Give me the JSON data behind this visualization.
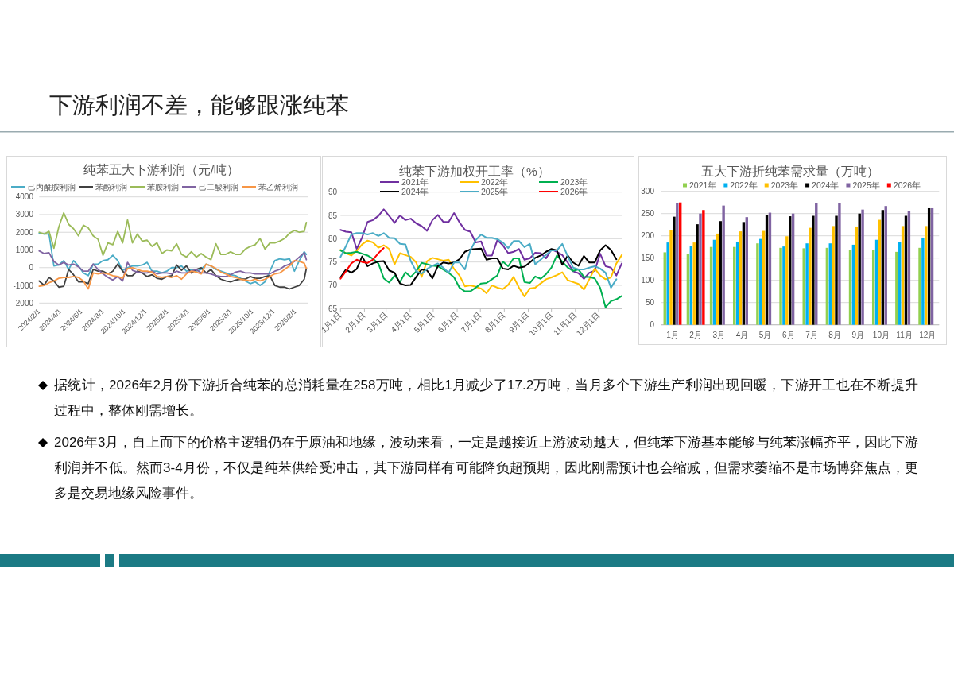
{
  "chart_data": [
    {
      "type": "other",
      "title": "下游利润不差，能够跟涨纯苯"
    },
    {
      "type": "line",
      "title": "纯苯五大下游利润（元/吨）",
      "legend": "top",
      "grid": "y",
      "ylim": [
        -2000,
        4000
      ],
      "yticks": [
        -2000,
        -1000,
        0,
        1000,
        2000,
        3000,
        4000
      ],
      "xlim": [
        "2024-02-01",
        "2026-03-10"
      ],
      "xticks": [
        {
          "value": "2024-02-01",
          "label": "2024/2/1"
        },
        {
          "value": "2024-04-01",
          "label": "2024/4/1"
        },
        {
          "value": "2024-06-01",
          "label": "2024/6/1"
        },
        {
          "value": "2024-08-01",
          "label": "2024/8/1"
        },
        {
          "value": "2024-10-01",
          "label": "2024/10/1"
        },
        {
          "value": "2024-12-01",
          "label": "2024/12/1"
        },
        {
          "value": "2025-02-01",
          "label": "2025/2/1"
        },
        {
          "value": "2025-04-01",
          "label": "2025/4/1"
        },
        {
          "value": "2025-06-01",
          "label": "2025/6/1"
        },
        {
          "value": "2025-08-01",
          "label": "2025/8/1"
        },
        {
          "value": "2025-10-01",
          "label": "2025/10/1"
        },
        {
          "value": "2025-12-01",
          "label": "2025/12/1"
        },
        {
          "value": "2026-02-01",
          "label": "2026/2/1"
        }
      ],
      "x": [
        "2024-02-01",
        "2024-02-15",
        "2024-02-29",
        "2024-03-14",
        "2024-03-28",
        "2024-04-11",
        "2024-04-25",
        "2024-05-09",
        "2024-05-23",
        "2024-06-06",
        "2024-06-20",
        "2024-07-04",
        "2024-07-18",
        "2024-08-01",
        "2024-08-15",
        "2024-08-29",
        "2024-09-12",
        "2024-09-26",
        "2024-10-10",
        "2024-10-24",
        "2024-11-07",
        "2024-11-21",
        "2024-12-05",
        "2024-12-19",
        "2025-01-02",
        "2025-01-16",
        "2025-01-30",
        "2025-02-13",
        "2025-02-27",
        "2025-03-13",
        "2025-03-27",
        "2025-04-10",
        "2025-04-24",
        "2025-05-08",
        "2025-05-22",
        "2025-06-05",
        "2025-06-19",
        "2025-07-03",
        "2025-07-17",
        "2025-07-31",
        "2025-08-14",
        "2025-08-28",
        "2025-09-11",
        "2025-09-25",
        "2025-10-09",
        "2025-10-23",
        "2025-11-06",
        "2025-11-20",
        "2025-12-04",
        "2025-12-18",
        "2026-01-01",
        "2026-01-15",
        "2026-01-29",
        "2026-02-12",
        "2026-02-26",
        "2026-03-04"
      ],
      "series": [
        {
          "name": "己内酰胺利润",
          "color": "#4bacc6",
          "values": [
            1950,
            1900,
            1900,
            100,
            150,
            400,
            -100,
            400,
            100,
            -300,
            -450,
            200,
            200,
            400,
            450,
            700,
            400,
            -150,
            0,
            100,
            100,
            150,
            300,
            -200,
            -200,
            -300,
            -200,
            0,
            0,
            100,
            -200,
            -100,
            -200,
            -100,
            200,
            100,
            -100,
            -200,
            -300,
            -400,
            -450,
            -600,
            -750,
            -900,
            -800,
            -1000,
            -800,
            -200,
            400,
            500,
            450,
            500,
            -200,
            400,
            900,
            750
          ]
        },
        {
          "name": "苯酚利润",
          "color": "#404040",
          "values": [
            -750,
            -1000,
            -550,
            -750,
            -1100,
            -1050,
            -100,
            -400,
            -800,
            -800,
            -900,
            -100,
            -200,
            -200,
            -350,
            -200,
            200,
            -200,
            -450,
            -450,
            -200,
            -300,
            -500,
            -400,
            -600,
            -650,
            -500,
            -450,
            150,
            -150,
            100,
            -300,
            -100,
            0,
            -300,
            -100,
            -450,
            -650,
            -750,
            -800,
            -700,
            -650,
            -650,
            -500,
            -600,
            -600,
            -500,
            -450,
            -1000,
            -1100,
            -1100,
            -1200,
            -1100,
            -1000,
            -650,
            -50
          ]
        },
        {
          "name": "苯胺利润",
          "color": "#9bbb59",
          "values": [
            2000,
            1900,
            2050,
            1100,
            2300,
            3100,
            2450,
            2200,
            1800,
            2400,
            2250,
            1800,
            1600,
            700,
            1400,
            1300,
            2050,
            1400,
            2700,
            1400,
            1900,
            1500,
            1550,
            1200,
            1400,
            800,
            1000,
            950,
            1350,
            750,
            600,
            900,
            600,
            800,
            600,
            450,
            1350,
            750,
            750,
            900,
            750,
            750,
            1050,
            1200,
            1300,
            1650,
            1050,
            1400,
            1400,
            1500,
            1650,
            1950,
            2100,
            2000,
            2050,
            2550
          ]
        },
        {
          "name": "己二酸利润",
          "color": "#8064a2",
          "values": [
            950,
            800,
            850,
            350,
            150,
            300,
            150,
            200,
            50,
            -200,
            -200,
            200,
            -100,
            -350,
            -550,
            -700,
            -500,
            -750,
            300,
            -150,
            -250,
            -300,
            -300,
            -200,
            -350,
            -300,
            -300,
            -350,
            -200,
            -300,
            -300,
            -200,
            -100,
            -300,
            -300,
            -350,
            -450,
            -500,
            -500,
            -400,
            -250,
            -200,
            -300,
            -300,
            -350,
            -350,
            -350,
            -350,
            -200,
            -100,
            100,
            200,
            350,
            600,
            850,
            450
          ]
        },
        {
          "name": "苯乙烯利润",
          "color": "#f79646",
          "values": [
            -1050,
            -1000,
            -850,
            -750,
            -600,
            -550,
            -550,
            -500,
            -550,
            -750,
            -1200,
            -300,
            -350,
            -300,
            -350,
            -450,
            -500,
            -600,
            -50,
            0,
            -100,
            -200,
            -200,
            -250,
            -500,
            -550,
            -500,
            -550,
            -450,
            -650,
            -350,
            -200,
            -250,
            -350,
            200,
            100,
            -50,
            -250,
            -350,
            -500,
            -550,
            -650,
            -700,
            -750,
            -650,
            -750,
            -650,
            -500,
            -350,
            -300,
            -100,
            100,
            400,
            350,
            250,
            -50
          ]
        }
      ]
    },
    {
      "type": "line",
      "title": "纯苯下游加权开工率（%）",
      "legend": "top",
      "grid": "y",
      "ylim": [
        65,
        90
      ],
      "yticks": [
        65,
        70,
        75,
        80,
        85,
        90
      ],
      "xlim": [
        "--01-01",
        "--12-31"
      ],
      "xticks": [
        {
          "value": "--01-01",
          "label": "1月1日"
        },
        {
          "value": "--02-01",
          "label": "2月1日"
        },
        {
          "value": "--03-01",
          "label": "3月1日"
        },
        {
          "value": "--04-01",
          "label": "4月1日"
        },
        {
          "value": "--05-01",
          "label": "5月1日"
        },
        {
          "value": "--06-01",
          "label": "6月1日"
        },
        {
          "value": "--07-01",
          "label": "7月1日"
        },
        {
          "value": "--08-01",
          "label": "8月1日"
        },
        {
          "value": "--09-01",
          "label": "9月1日"
        },
        {
          "value": "--10-01",
          "label": "10月1日"
        },
        {
          "value": "--11-01",
          "label": "11月1日"
        },
        {
          "value": "--12-01",
          "label": "12月1日"
        }
      ],
      "x": [
        "--01-01",
        "--01-08",
        "--01-15",
        "--01-22",
        "--01-29",
        "--02-05",
        "--02-12",
        "--02-19",
        "--02-26",
        "--03-05",
        "--03-12",
        "--03-19",
        "--03-26",
        "--04-02",
        "--04-09",
        "--04-16",
        "--04-23",
        "--04-30",
        "--05-07",
        "--05-14",
        "--05-21",
        "--05-28",
        "--06-04",
        "--06-11",
        "--06-18",
        "--06-25",
        "--07-02",
        "--07-09",
        "--07-16",
        "--07-23",
        "--07-30",
        "--08-06",
        "--08-13",
        "--08-20",
        "--08-27",
        "--09-03",
        "--09-10",
        "--09-17",
        "--09-24",
        "--10-01",
        "--10-08",
        "--10-15",
        "--10-22",
        "--10-29",
        "--11-05",
        "--11-12",
        "--11-19",
        "--11-26",
        "--12-03",
        "--12-10",
        "--12-17",
        "--12-24",
        "--12-31"
      ],
      "series": [
        {
          "name": "2021年",
          "color": "#7030a0",
          "values": [
            81.9,
            81.5,
            81.4,
            77.8,
            80.3,
            83.6,
            84.0,
            84.9,
            86.3,
            84.9,
            83.4,
            85.0,
            84.0,
            84.3,
            83.3,
            82.7,
            81.7,
            84.0,
            85.1,
            83.6,
            83.6,
            85.5,
            83.5,
            81.9,
            81.5,
            79.2,
            79.4,
            76.4,
            76.4,
            79.7,
            78.6,
            76.9,
            77.2,
            77.8,
            75.5,
            75.8,
            77.0,
            76.9,
            75.8,
            77.7,
            77.2,
            76.5,
            74.9,
            73.0,
            72.6,
            71.4,
            72.7,
            73.1,
            76.8,
            74.1,
            73.8,
            72.1,
            74.7
          ]
        },
        {
          "name": "2022年",
          "color": "#ffc000",
          "values": [
            77.6,
            76.9,
            76.4,
            77.4,
            78.8,
            79.6,
            79.2,
            78.1,
            78.6,
            77.8,
            74.5,
            76.9,
            76.5,
            76.1,
            74.9,
            71.8,
            75.2,
            75.9,
            75.6,
            75.3,
            75.5,
            73.5,
            72.1,
            69.8,
            70.0,
            69.7,
            69.3,
            68.3,
            70.0,
            69.5,
            69.2,
            70.1,
            71.8,
            69.5,
            67.6,
            69.3,
            69.5,
            70.4,
            71.3,
            71.7,
            72.2,
            72.8,
            71.1,
            70.7,
            70.3,
            69.1,
            71.3,
            73.6,
            72.1,
            71.3,
            71.7,
            74.7,
            76.5
          ]
        },
        {
          "name": "2023年",
          "color": "#00b050",
          "values": [
            77.5,
            76.9,
            77.0,
            77.2,
            76.8,
            76.4,
            75.7,
            74.7,
            71.5,
            70.6,
            72.1,
            70.7,
            72.8,
            71.8,
            73.0,
            74.8,
            74.5,
            74.2,
            74.1,
            73.4,
            72.7,
            71.7,
            69.5,
            68.7,
            68.7,
            69.5,
            70.4,
            70.5,
            71.3,
            72.1,
            75.1,
            74.1,
            75.8,
            75.8,
            70.7,
            70.5,
            71.9,
            71.4,
            72.4,
            73.8,
            76.4,
            75.1,
            73.8,
            73.1,
            73.4,
            71.8,
            71.8,
            71.5,
            69.5,
            65.3,
            66.6,
            67.0,
            67.7
          ]
        },
        {
          "name": "2024年",
          "color": "#000000",
          "values": [
            71.7,
            73.4,
            72.7,
            73.5,
            76.2,
            74.1,
            74.7,
            75.1,
            75.2,
            73.2,
            72.7,
            70.4,
            70.0,
            70.1,
            71.8,
            73.4,
            73.2,
            71.5,
            74.1,
            74.9,
            74.7,
            74.9,
            75.6,
            77.2,
            77.7,
            77.8,
            77.9,
            75.5,
            75.8,
            75.8,
            73.6,
            73.4,
            74.2,
            73.8,
            74.0,
            74.9,
            75.9,
            76.4,
            77.2,
            77.8,
            77.5,
            74.4,
            76.4,
            74.9,
            74.2,
            76.3,
            74.9,
            74.9,
            77.5,
            78.6,
            77.6,
            75.6,
            null
          ]
        },
        {
          "name": "2025年",
          "color": "#4bacc6",
          "values": [
            76.1,
            78.4,
            80.9,
            81.2,
            81.2,
            80.9,
            81.2,
            80.6,
            81.2,
            80.2,
            80.1,
            78.9,
            78.8,
            75.2,
            73.0,
            72.5,
            73.5,
            74.2,
            74.7,
            73.8,
            72.7,
            74.9,
            74.9,
            73.4,
            77.5,
            79.7,
            80.9,
            80.2,
            80.2,
            79.9,
            79.2,
            78.0,
            79.5,
            79.5,
            78.2,
            78.9,
            74.5,
            75.5,
            76.5,
            77.5,
            77.5,
            78.9,
            76.3,
            73.8,
            73.4,
            73.4,
            73.8,
            74.1,
            73.6,
            72.7,
            69.5,
            71.3,
            null
          ]
        },
        {
          "name": "2026年",
          "color": "#ff0000",
          "values": [
            71.4,
            73.0,
            74.7,
            75.5,
            75.0,
            74.8,
            75.5,
            76.9,
            78.0,
            null,
            null,
            null,
            null,
            null,
            null,
            null,
            null,
            null,
            null,
            null,
            null,
            null,
            null,
            null,
            null,
            null,
            null,
            null,
            null,
            null,
            null,
            null,
            null,
            null,
            null,
            null,
            null,
            null,
            null,
            null,
            null,
            null,
            null,
            null,
            null,
            null,
            null,
            null,
            null,
            null,
            null,
            null,
            null
          ]
        }
      ]
    },
    {
      "type": "bar",
      "title": "五大下游折纯苯需求量（万吨）",
      "legend": "top",
      "grid": "y",
      "ylim": [
        0,
        300
      ],
      "yticks": [
        0,
        50,
        100,
        150,
        200,
        250,
        300
      ],
      "categories": [
        "1月",
        "2月",
        "3月",
        "4月",
        "5月",
        "6月",
        "7月",
        "8月",
        "9月",
        "10月",
        "11月",
        "12月"
      ],
      "series": [
        {
          "name": "2021年",
          "color": "#92d050",
          "values": [
            163,
            160,
            175,
            175,
            183,
            173,
            172,
            173,
            169,
            169,
            164,
            173
          ]
        },
        {
          "name": "2022年",
          "color": "#00b0f0",
          "values": [
            185,
            177,
            191,
            187,
            193,
            176,
            183,
            183,
            180,
            191,
            186,
            196
          ]
        },
        {
          "name": "2023年",
          "color": "#ffc000",
          "values": [
            212,
            185,
            205,
            210,
            211,
            199,
            218,
            222,
            221,
            236,
            222,
            222
          ]
        },
        {
          "name": "2024年",
          "color": "#000000",
          "values": [
            243,
            226,
            233,
            231,
            246,
            244,
            245,
            245,
            250,
            258,
            245,
            262
          ]
        },
        {
          "name": "2025年",
          "color": "#8064a2",
          "values": [
            273,
            250,
            268,
            242,
            252,
            250,
            273,
            273,
            259,
            267,
            256,
            262
          ]
        },
        {
          "name": "2026年",
          "color": "#ff0000",
          "values": [
            275,
            258,
            null,
            null,
            null,
            null,
            null,
            null,
            null,
            null,
            null,
            null
          ]
        }
      ]
    },
    {
      "type": "other",
      "annotations": [
        "据统计，2026年2月份下游折合纯苯的总消耗量在258万吨，相比1月减少了17.2万吨，当月多个下游生产利润出现回暖，下游开工也在不断提升过程中，整体刚需增长。",
        "2026年3月，自上而下的价格主逻辑仍在于原油和地缘，波动来看，一定是越接近上游波动越大，但纯苯下游基本能够与纯苯涨幅齐平，因此下游利润并不低。然而3-4月份，不仅是纯苯供给受冲击，其下游同样有可能降负超预期，因此刚需预计也会缩减，但需求萎缩不是市场博弈焦点，更多是交易地缘风险事件。"
      ]
    }
  ]
}
